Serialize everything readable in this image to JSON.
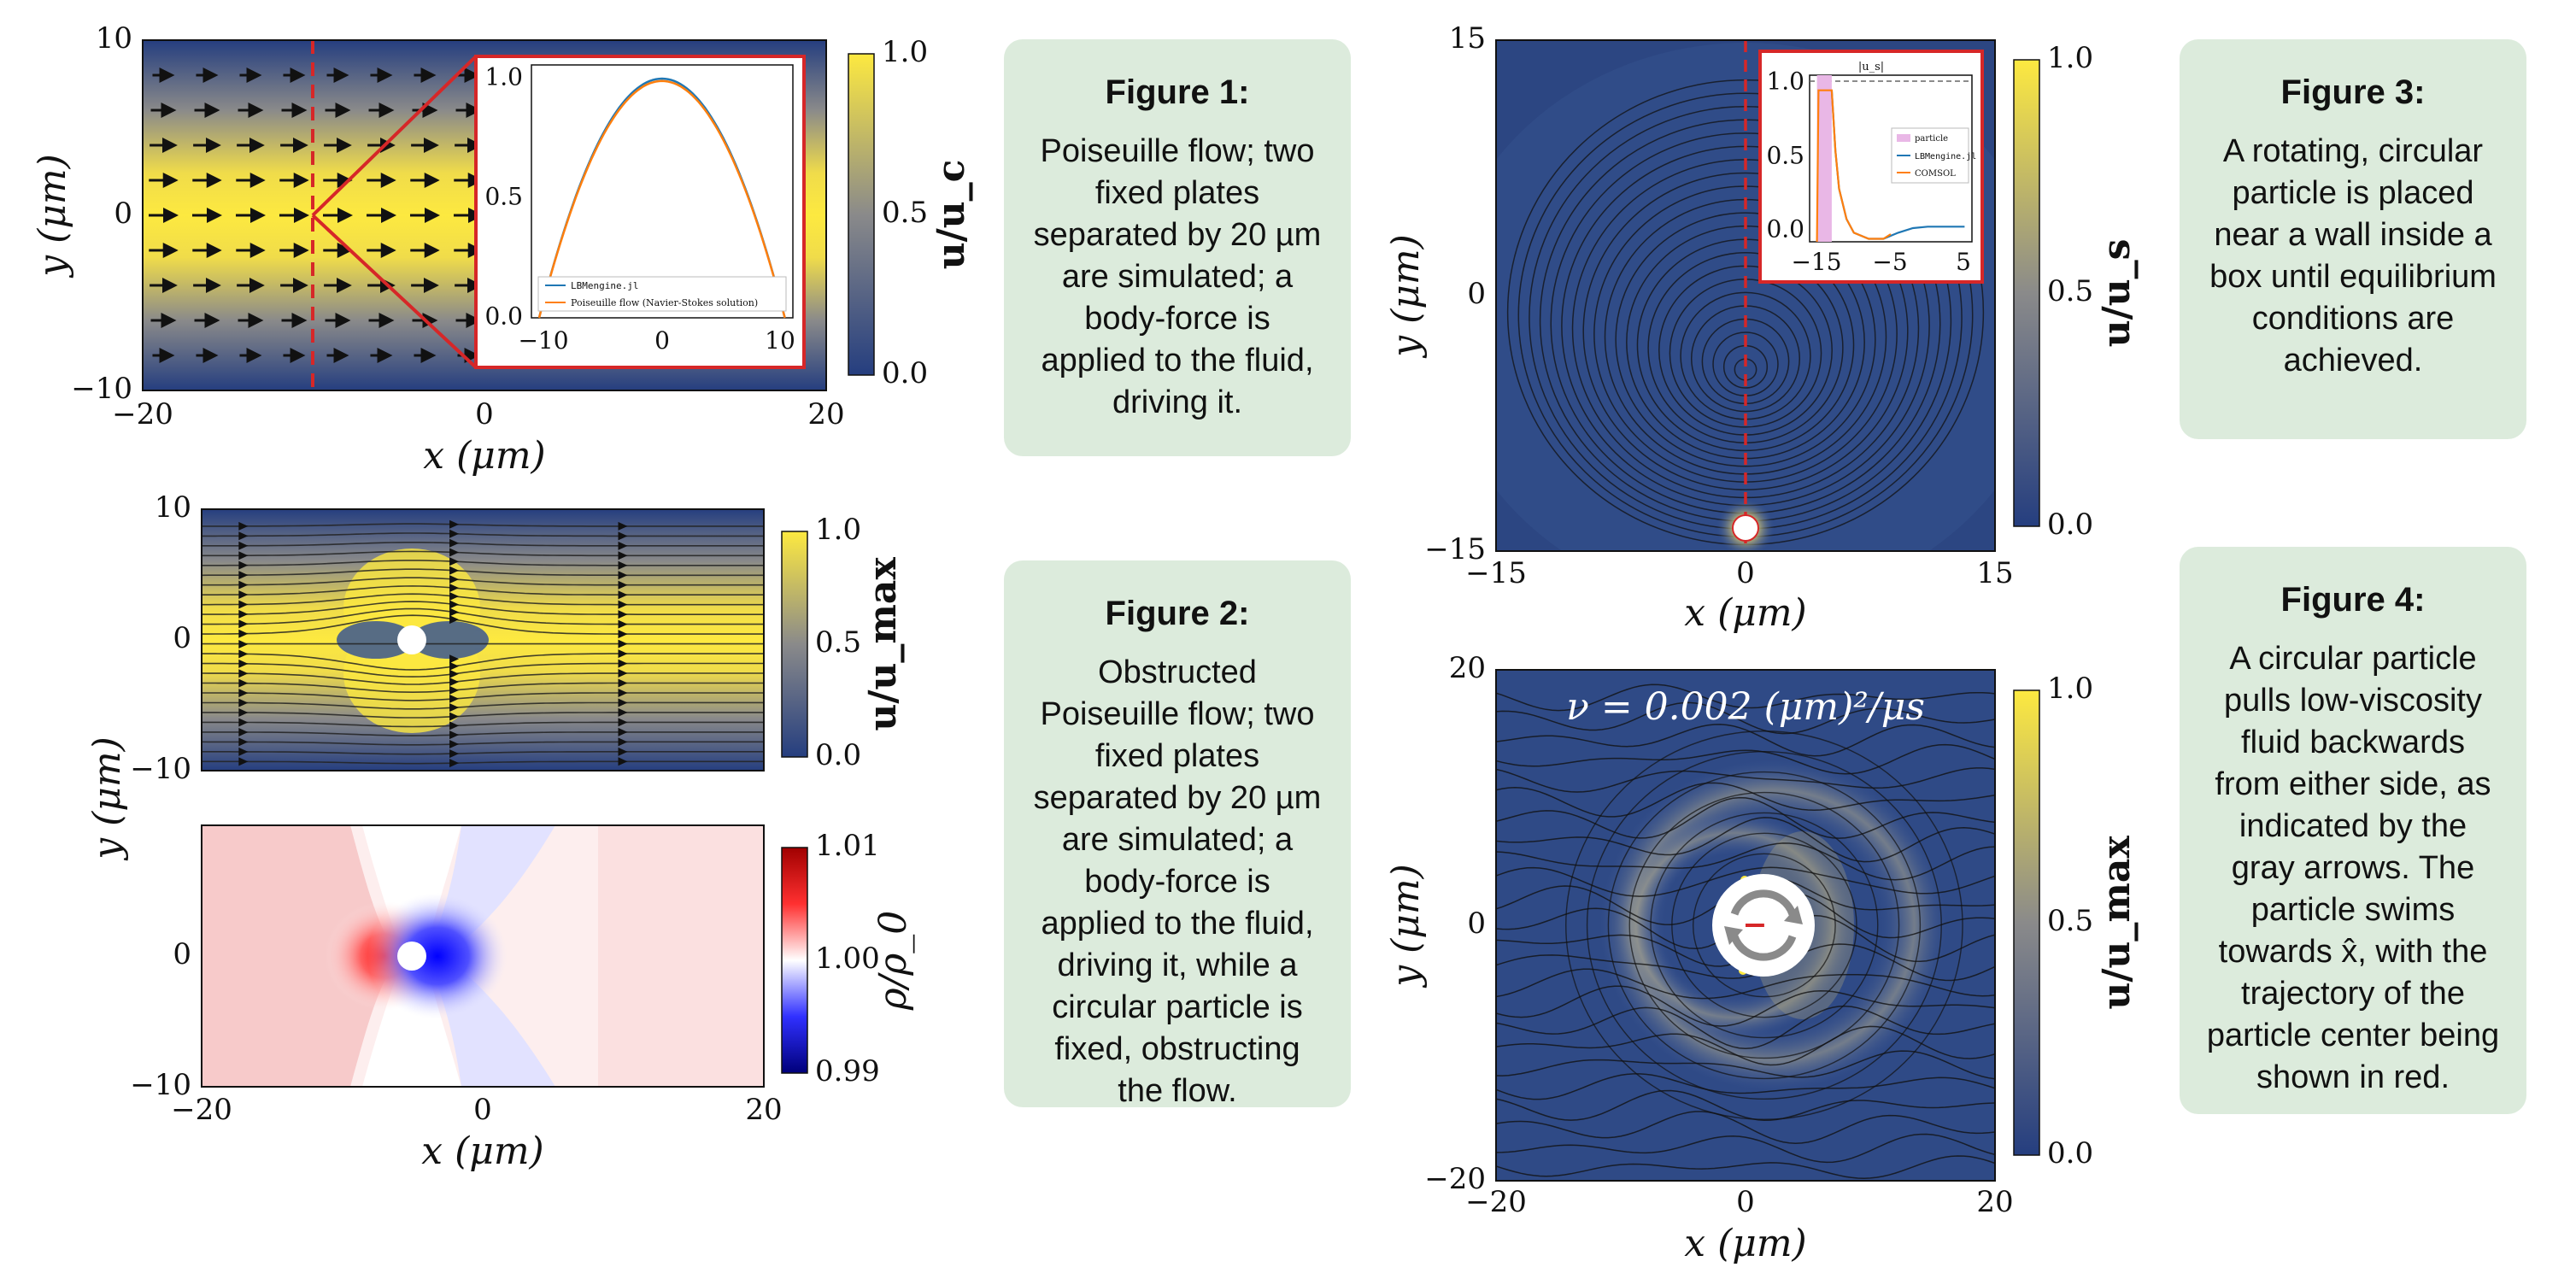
{
  "colors": {
    "low": "#253e7f",
    "mid": "#8a8a8a",
    "high": "#fde940",
    "accent": "#d62728",
    "card": "#dcebdc",
    "rho_low": "#0000a0",
    "rho_high": "#b00000"
  },
  "cards": [
    {
      "title": "Figure 1:",
      "body": "Poiseuille flow; two fixed plates separated by 20 µm are simulated; a body-force is applied to the fluid, driving it."
    },
    {
      "title": "Figure 2:",
      "body": "Obstructed Poiseuille flow; two fixed plates separated by 20 µm are simulated; a body-force is applied to the fluid, driving it, while a circular particle is fixed, obstructing the flow."
    },
    {
      "title": "Figure 3:",
      "body": "A rotating, circular particle is placed near a wall inside a box until equilibrium conditions are achieved."
    },
    {
      "title": "Figure 4:",
      "body": "A circular particle pulls low-viscosity fluid backwards from either side, as indicated by the gray arrows. The particle swims towards x̂, with the trajectory of the particle center being shown in red."
    }
  ],
  "chart_data": [
    {
      "type": "heatmap",
      "id": "fig1",
      "xlabel": "x (μm)",
      "ylabel": "y (μm)",
      "xlim": [
        -20,
        20
      ],
      "ylim": [
        -10,
        10
      ],
      "xticks": [
        "−20",
        "0",
        "20"
      ],
      "yticks": [
        "−10",
        "0",
        "10"
      ],
      "colorbar": {
        "label": "u/u_c",
        "range": [
          0.0,
          1.0
        ],
        "ticks": [
          "0.0",
          "0.5",
          "1.0"
        ]
      },
      "annotation": {
        "type": "vertical-dashed-line",
        "x": -10
      },
      "inset": {
        "type": "line",
        "xlim": [
          -10,
          10
        ],
        "ylim": [
          0,
          1
        ],
        "xticks": [
          "−10",
          "0",
          "10"
        ],
        "yticks": [
          "0.0",
          "0.5",
          "1.0"
        ],
        "series": [
          {
            "name": "LBMengine.jl",
            "color": "#1f77b4",
            "x": [
              -10,
              -8,
              -6,
              -4,
              -2,
              0,
              2,
              4,
              6,
              8,
              10
            ],
            "y": [
              0,
              0.36,
              0.64,
              0.84,
              0.96,
              1.0,
              0.96,
              0.84,
              0.64,
              0.36,
              0
            ]
          },
          {
            "name": "Poiseuille flow (Navier-Stokes solution)",
            "color": "#ff7f0e",
            "x": [
              -10,
              -8,
              -6,
              -4,
              -2,
              0,
              2,
              4,
              6,
              8,
              10
            ],
            "y": [
              0,
              0.355,
              0.635,
              0.835,
              0.955,
              0.99,
              0.955,
              0.835,
              0.635,
              0.355,
              0
            ]
          }
        ],
        "legend": "bottom"
      }
    },
    {
      "type": "heatmap",
      "id": "fig2a",
      "xlim": [
        -20,
        20
      ],
      "ylim": [
        -10,
        10
      ],
      "yticks": [
        "−10",
        "0",
        "10"
      ],
      "colorbar": {
        "label": "u/u_max",
        "range": [
          0.0,
          1.0
        ],
        "ticks": [
          "0.0",
          "0.5",
          "1.0"
        ]
      },
      "particle": {
        "x": -5,
        "y": 0
      }
    },
    {
      "type": "heatmap",
      "id": "fig2b",
      "xlabel": "x (μm)",
      "ylabel": "y (μm)",
      "xlim": [
        -20,
        20
      ],
      "ylim": [
        -10,
        10
      ],
      "xticks": [
        "−20",
        "0",
        "20"
      ],
      "yticks": [
        "−10",
        "0"
      ],
      "colorbar": {
        "label": "ρ/ρ_0",
        "range": [
          0.99,
          1.01
        ],
        "ticks": [
          "0.99",
          "1.00",
          "1.01"
        ]
      },
      "particle": {
        "x": -5,
        "y": 0
      }
    },
    {
      "type": "heatmap",
      "id": "fig3",
      "xlabel": "x (μm)",
      "ylabel": "y (μm)",
      "xlim": [
        -15,
        15
      ],
      "ylim": [
        -15,
        15
      ],
      "xticks": [
        "−15",
        "0",
        "15"
      ],
      "yticks": [
        "−15",
        "0",
        "15"
      ],
      "colorbar": {
        "label": "u/u_s",
        "range": [
          0.0,
          1.0
        ],
        "ticks": [
          "0.0",
          "0.5",
          "1.0"
        ]
      },
      "particle": {
        "x": 0,
        "y": -14
      },
      "annotation": {
        "type": "vertical-dashed-line",
        "x": 0
      },
      "inset": {
        "type": "line",
        "title": "|u_s|",
        "xlim": [
          -16,
          6
        ],
        "ylim": [
          0,
          1.1
        ],
        "xticks": [
          "−15",
          "−5",
          "5"
        ],
        "yticks": [
          "0.0",
          "0.5",
          "1.0"
        ],
        "particle_band": [
          -15,
          -13
        ],
        "series": [
          {
            "name": "LBMengine.jl",
            "color": "#1f77b4",
            "x": [
              -13,
              -12.5,
              -12,
              -11,
              -10,
              -8,
              -6,
              -4,
              -2,
              0,
              2,
              4,
              5
            ],
            "y": [
              1.0,
              0.6,
              0.35,
              0.15,
              0.06,
              0.02,
              0.02,
              0.06,
              0.09,
              0.1,
              0.1,
              0.1,
              0.1
            ]
          },
          {
            "name": "COMSOL",
            "color": "#ff7f0e",
            "x": [
              -15,
              -14.8,
              -13,
              -12.5,
              -12,
              -11,
              -10,
              -8,
              -6,
              -5
            ],
            "y": [
              0.0,
              1.0,
              1.0,
              0.6,
              0.35,
              0.15,
              0.06,
              0.02,
              0.02,
              0.05
            ]
          }
        ],
        "legend": "right"
      }
    },
    {
      "type": "heatmap",
      "id": "fig4",
      "xlabel": "x (μm)",
      "ylabel": "y (μm)",
      "xlim": [
        -20,
        20
      ],
      "ylim": [
        -20,
        20
      ],
      "xticks": [
        "−20",
        "0",
        "20"
      ],
      "yticks": [
        "−20",
        "0",
        "20"
      ],
      "colorbar": {
        "label": "u/u_max",
        "range": [
          0.0,
          1.0
        ],
        "ticks": [
          "0.0",
          "0.5",
          "1.0"
        ]
      },
      "annotation_text": "ν = 0.002 (μm)²/μs",
      "particle": {
        "x": 1.5,
        "y": 0
      },
      "trajectory": {
        "x": [
          0,
          1.5
        ],
        "y": [
          0,
          0
        ]
      }
    }
  ]
}
